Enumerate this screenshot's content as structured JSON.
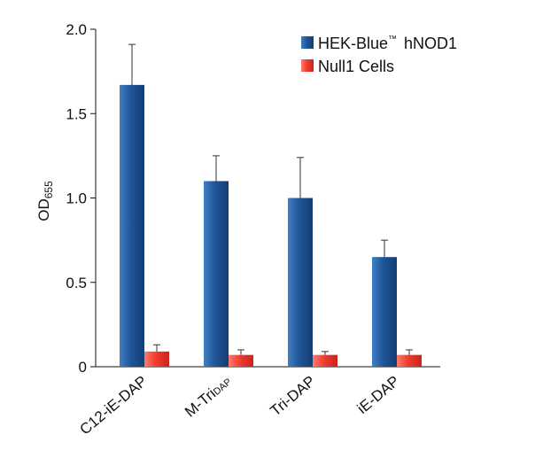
{
  "chart_data": {
    "type": "bar",
    "categories": [
      "C12-iE-DAP",
      "M-TriDAP",
      "Tri-DAP",
      "iE-DAP"
    ],
    "category_display": [
      {
        "main": "C12-iE-DAP",
        "sub": ""
      },
      {
        "main": "M-Tri",
        "sub": "DAP"
      },
      {
        "main": "Tri-DAP",
        "sub": ""
      },
      {
        "main": "iE-DAP",
        "sub": ""
      }
    ],
    "series": [
      {
        "name": "HEK-Blue™ hNOD1",
        "legend_main": "HEK-Blue",
        "legend_sup": "™",
        "legend_rest": "hNOD1",
        "values": [
          1.67,
          1.1,
          1.0,
          0.65
        ],
        "errors": [
          0.24,
          0.15,
          0.24,
          0.1
        ],
        "color": "#1f5598"
      },
      {
        "name": "Null1 Cells",
        "values": [
          0.09,
          0.07,
          0.07,
          0.07
        ],
        "errors": [
          0.04,
          0.03,
          0.02,
          0.03
        ],
        "color": "#f23c30"
      }
    ],
    "title": "",
    "xlabel": "",
    "ylabel_main": "OD",
    "ylabel_sub": "655",
    "ylim": [
      0,
      2.0
    ],
    "yticks": [
      0,
      0.5,
      1.0,
      1.5,
      2.0
    ],
    "ytick_labels": [
      "0",
      "0.5",
      "1.0",
      "1.5",
      "2.0"
    ],
    "grid": false,
    "legend_position": "top-right"
  }
}
